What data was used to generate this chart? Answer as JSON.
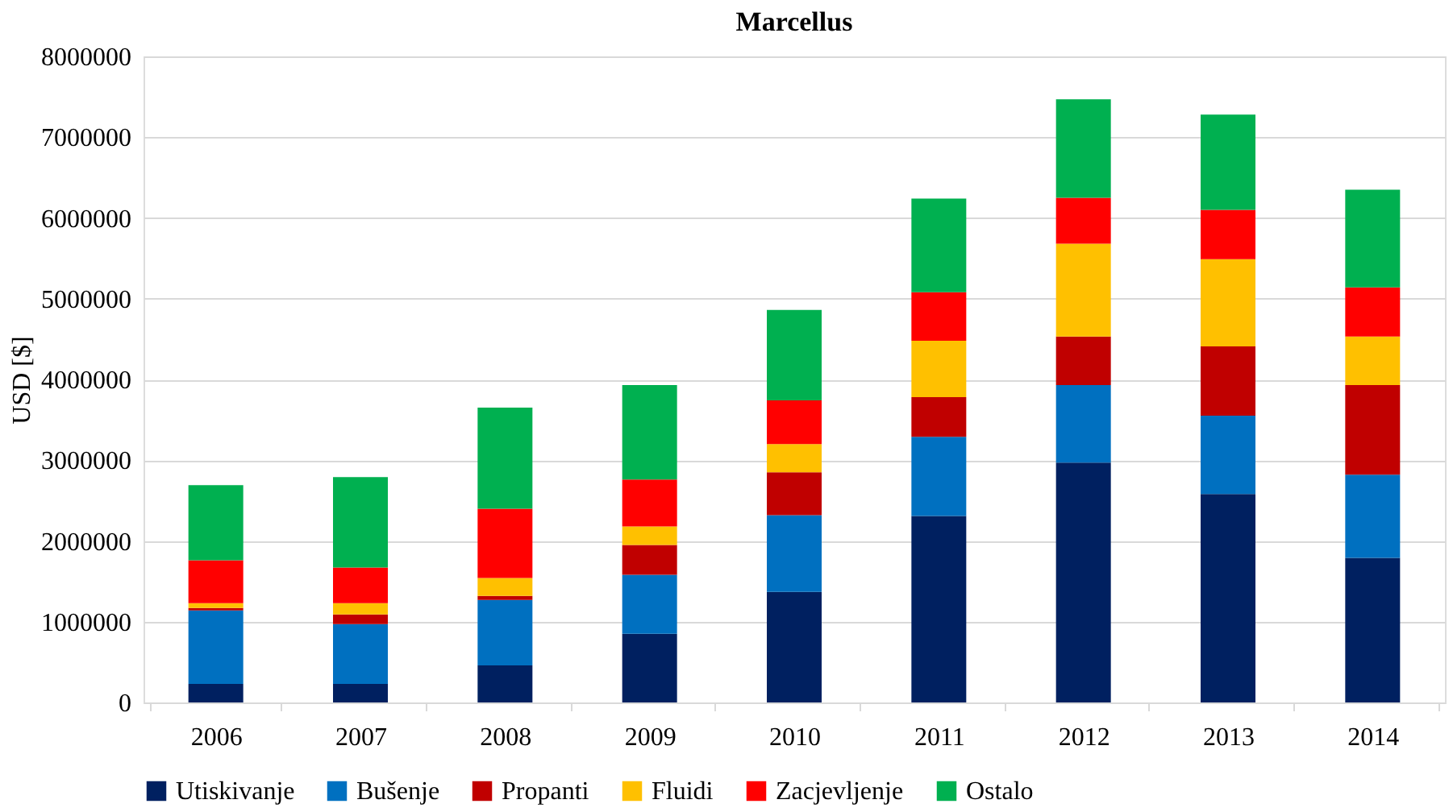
{
  "chart_data": {
    "type": "bar",
    "title": "Marcellus",
    "ylabel": "USD [$]",
    "stacked": true,
    "categories": [
      "2006",
      "2007",
      "2008",
      "2009",
      "2010",
      "2011",
      "2012",
      "2013",
      "2014"
    ],
    "series": [
      {
        "name": "Utiskivanje",
        "color": "#002060",
        "values": [
          230000,
          230000,
          460000,
          850000,
          1370000,
          2310000,
          2970000,
          2580000,
          1790000
        ]
      },
      {
        "name": "Bušenje",
        "color": "#0070c0",
        "values": [
          910000,
          740000,
          810000,
          730000,
          950000,
          980000,
          960000,
          970000,
          1030000
        ]
      },
      {
        "name": "Propanti",
        "color": "#c00000",
        "values": [
          30000,
          120000,
          50000,
          370000,
          530000,
          490000,
          600000,
          860000,
          1110000
        ]
      },
      {
        "name": "Fluidi",
        "color": "#ffc000",
        "values": [
          60000,
          140000,
          220000,
          230000,
          350000,
          700000,
          1150000,
          1080000,
          600000
        ]
      },
      {
        "name": "Zacjevljenje",
        "color": "#ff0000",
        "values": [
          530000,
          440000,
          860000,
          580000,
          540000,
          600000,
          570000,
          610000,
          610000
        ]
      },
      {
        "name": "Ostalo",
        "color": "#00b050",
        "values": [
          930000,
          1120000,
          1250000,
          1170000,
          1120000,
          1160000,
          1220000,
          1180000,
          1210000
        ]
      }
    ],
    "ylim": [
      0,
      8000000
    ],
    "yticks": [
      0,
      1000000,
      2000000,
      3000000,
      4000000,
      5000000,
      6000000,
      7000000,
      8000000
    ],
    "grid": "y",
    "legend": "bottom"
  }
}
